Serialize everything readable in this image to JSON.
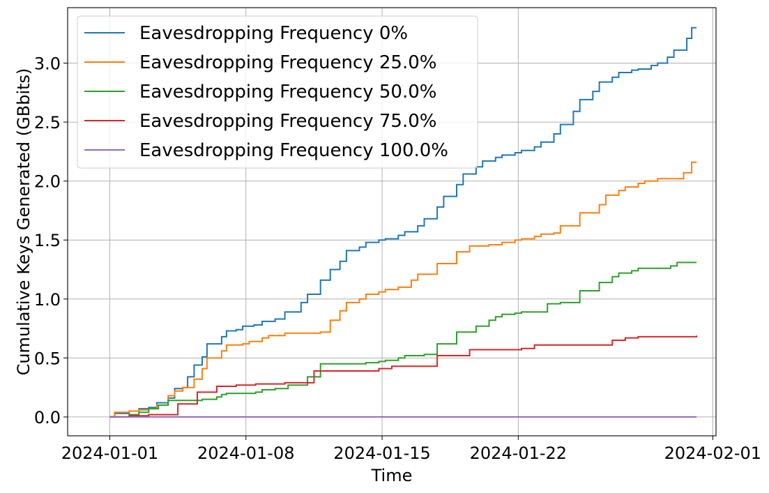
{
  "chart_data": {
    "type": "line",
    "step": true,
    "title": "",
    "xlabel": "Time",
    "ylabel": "Cumulative Keys Generated (GBbits)",
    "xlim": [
      "2023-12-29T20:00",
      "2024-02-01T04:00"
    ],
    "ylim": [
      -0.16,
      3.47
    ],
    "xticks": [
      "2024-01-01",
      "2024-01-08",
      "2024-01-15",
      "2024-01-22",
      "2024-02-01"
    ],
    "yticks": [
      "0.0",
      "0.5",
      "1.0",
      "1.5",
      "2.0",
      "2.5",
      "3.0"
    ],
    "grid": true,
    "legend_position": "top-left",
    "series": [
      {
        "name": "Eavesdropping Frequency 0%",
        "color": "#1f77b4",
        "points": [
          [
            "2024-01-01T00:00",
            0.0
          ],
          [
            "2024-01-01T06:00",
            0.03
          ],
          [
            "2024-01-02T00:00",
            0.05
          ],
          [
            "2024-01-02T12:00",
            0.07
          ],
          [
            "2024-01-03T00:00",
            0.08
          ],
          [
            "2024-01-03T10:00",
            0.12
          ],
          [
            "2024-01-04T00:00",
            0.16
          ],
          [
            "2024-01-04T08:00",
            0.24
          ],
          [
            "2024-01-04T18:00",
            0.25
          ],
          [
            "2024-01-05T00:00",
            0.34
          ],
          [
            "2024-01-05T08:00",
            0.44
          ],
          [
            "2024-01-05T18:00",
            0.51
          ],
          [
            "2024-01-06T00:00",
            0.62
          ],
          [
            "2024-01-06T18:00",
            0.68
          ],
          [
            "2024-01-07T00:00",
            0.73
          ],
          [
            "2024-01-07T12:00",
            0.74
          ],
          [
            "2024-01-07T20:00",
            0.77
          ],
          [
            "2024-01-08T10:00",
            0.78
          ],
          [
            "2024-01-08T20:00",
            0.81
          ],
          [
            "2024-01-09T12:00",
            0.83
          ],
          [
            "2024-01-10T00:00",
            0.89
          ],
          [
            "2024-01-10T20:00",
            0.97
          ],
          [
            "2024-01-11T04:00",
            1.04
          ],
          [
            "2024-01-11T20:00",
            1.16
          ],
          [
            "2024-01-12T08:00",
            1.25
          ],
          [
            "2024-01-12T20:00",
            1.32
          ],
          [
            "2024-01-13T04:00",
            1.41
          ],
          [
            "2024-01-13T20:00",
            1.44
          ],
          [
            "2024-01-14T04:00",
            1.48
          ],
          [
            "2024-01-14T20:00",
            1.5
          ],
          [
            "2024-01-15T04:00",
            1.51
          ],
          [
            "2024-01-15T20:00",
            1.54
          ],
          [
            "2024-01-16T04:00",
            1.57
          ],
          [
            "2024-01-16T20:00",
            1.62
          ],
          [
            "2024-01-17T04:00",
            1.68
          ],
          [
            "2024-01-17T20:00",
            1.78
          ],
          [
            "2024-01-18T04:00",
            1.87
          ],
          [
            "2024-01-18T20:00",
            1.97
          ],
          [
            "2024-01-19T04:00",
            2.06
          ],
          [
            "2024-01-19T20:00",
            2.12
          ],
          [
            "2024-01-20T04:00",
            2.17
          ],
          [
            "2024-01-20T20:00",
            2.2
          ],
          [
            "2024-01-21T04:00",
            2.22
          ],
          [
            "2024-01-21T20:00",
            2.24
          ],
          [
            "2024-01-22T04:00",
            2.26
          ],
          [
            "2024-01-22T20:00",
            2.29
          ],
          [
            "2024-01-23T04:00",
            2.33
          ],
          [
            "2024-01-23T20:00",
            2.4
          ],
          [
            "2024-01-24T04:00",
            2.48
          ],
          [
            "2024-01-24T20:00",
            2.59
          ],
          [
            "2024-01-25T04:00",
            2.69
          ],
          [
            "2024-01-25T20:00",
            2.76
          ],
          [
            "2024-01-26T04:00",
            2.84
          ],
          [
            "2024-01-26T20:00",
            2.88
          ],
          [
            "2024-01-27T04:00",
            2.92
          ],
          [
            "2024-01-27T20:00",
            2.94
          ],
          [
            "2024-01-28T04:00",
            2.95
          ],
          [
            "2024-01-28T20:00",
            2.98
          ],
          [
            "2024-01-29T04:00",
            3.0
          ],
          [
            "2024-01-29T16:00",
            3.05
          ],
          [
            "2024-01-30T00:00",
            3.11
          ],
          [
            "2024-01-30T16:00",
            3.21
          ],
          [
            "2024-01-30T22:00",
            3.3
          ],
          [
            "2024-01-31T04:00",
            3.3
          ]
        ]
      },
      {
        "name": "Eavesdropping Frequency 25.0%",
        "color": "#ff7f0e",
        "points": [
          [
            "2024-01-01T00:00",
            0.0
          ],
          [
            "2024-01-01T06:00",
            0.04
          ],
          [
            "2024-01-02T00:00",
            0.05
          ],
          [
            "2024-01-02T12:00",
            0.06
          ],
          [
            "2024-01-03T00:00",
            0.07
          ],
          [
            "2024-01-03T10:00",
            0.1
          ],
          [
            "2024-01-04T00:00",
            0.18
          ],
          [
            "2024-01-04T08:00",
            0.22
          ],
          [
            "2024-01-04T18:00",
            0.25
          ],
          [
            "2024-01-05T08:00",
            0.32
          ],
          [
            "2024-01-05T18:00",
            0.41
          ],
          [
            "2024-01-06T00:00",
            0.5
          ],
          [
            "2024-01-06T18:00",
            0.56
          ],
          [
            "2024-01-07T00:00",
            0.61
          ],
          [
            "2024-01-07T20:00",
            0.62
          ],
          [
            "2024-01-08T04:00",
            0.64
          ],
          [
            "2024-01-08T20:00",
            0.67
          ],
          [
            "2024-01-09T04:00",
            0.69
          ],
          [
            "2024-01-10T00:00",
            0.71
          ],
          [
            "2024-01-11T20:00",
            0.72
          ],
          [
            "2024-01-12T08:00",
            0.82
          ],
          [
            "2024-01-12T20:00",
            0.9
          ],
          [
            "2024-01-13T04:00",
            0.97
          ],
          [
            "2024-01-13T20:00",
            1.0
          ],
          [
            "2024-01-14T04:00",
            1.04
          ],
          [
            "2024-01-14T20:00",
            1.06
          ],
          [
            "2024-01-15T04:00",
            1.08
          ],
          [
            "2024-01-15T20:00",
            1.1
          ],
          [
            "2024-01-16T12:00",
            1.16
          ],
          [
            "2024-01-16T20:00",
            1.21
          ],
          [
            "2024-01-17T20:00",
            1.3
          ],
          [
            "2024-01-18T20:00",
            1.4
          ],
          [
            "2024-01-19T12:00",
            1.45
          ],
          [
            "2024-01-20T12:00",
            1.46
          ],
          [
            "2024-01-21T04:00",
            1.48
          ],
          [
            "2024-01-21T20:00",
            1.5
          ],
          [
            "2024-01-22T04:00",
            1.51
          ],
          [
            "2024-01-22T20:00",
            1.53
          ],
          [
            "2024-01-23T04:00",
            1.55
          ],
          [
            "2024-01-23T20:00",
            1.56
          ],
          [
            "2024-01-24T04:00",
            1.62
          ],
          [
            "2024-01-25T04:00",
            1.73
          ],
          [
            "2024-01-26T04:00",
            1.8
          ],
          [
            "2024-01-26T12:00",
            1.88
          ],
          [
            "2024-01-27T04:00",
            1.92
          ],
          [
            "2024-01-27T12:00",
            1.95
          ],
          [
            "2024-01-28T04:00",
            1.98
          ],
          [
            "2024-01-28T12:00",
            2.0
          ],
          [
            "2024-01-29T04:00",
            2.02
          ],
          [
            "2024-01-30T12:00",
            2.07
          ],
          [
            "2024-01-30T22:00",
            2.16
          ],
          [
            "2024-01-31T04:00",
            2.16
          ]
        ]
      },
      {
        "name": "Eavesdropping Frequency 50.0%",
        "color": "#2ca02c",
        "points": [
          [
            "2024-01-01T00:00",
            0.0
          ],
          [
            "2024-01-02T00:00",
            0.02
          ],
          [
            "2024-01-02T12:00",
            0.04
          ],
          [
            "2024-01-03T00:00",
            0.07
          ],
          [
            "2024-01-03T12:00",
            0.1
          ],
          [
            "2024-01-04T00:00",
            0.14
          ],
          [
            "2024-01-05T18:00",
            0.15
          ],
          [
            "2024-01-06T12:00",
            0.17
          ],
          [
            "2024-01-06T18:00",
            0.19
          ],
          [
            "2024-01-07T00:00",
            0.2
          ],
          [
            "2024-01-08T12:00",
            0.21
          ],
          [
            "2024-01-08T20:00",
            0.23
          ],
          [
            "2024-01-09T12:00",
            0.24
          ],
          [
            "2024-01-10T04:00",
            0.27
          ],
          [
            "2024-01-11T04:00",
            0.34
          ],
          [
            "2024-01-11T20:00",
            0.45
          ],
          [
            "2024-01-14T04:00",
            0.46
          ],
          [
            "2024-01-14T20:00",
            0.47
          ],
          [
            "2024-01-15T04:00",
            0.48
          ],
          [
            "2024-01-15T20:00",
            0.5
          ],
          [
            "2024-01-16T04:00",
            0.52
          ],
          [
            "2024-01-17T04:00",
            0.53
          ],
          [
            "2024-01-17T20:00",
            0.62
          ],
          [
            "2024-01-18T20:00",
            0.72
          ],
          [
            "2024-01-19T20:00",
            0.77
          ],
          [
            "2024-01-20T12:00",
            0.82
          ],
          [
            "2024-01-20T20:00",
            0.85
          ],
          [
            "2024-01-21T04:00",
            0.87
          ],
          [
            "2024-01-21T20:00",
            0.88
          ],
          [
            "2024-01-22T04:00",
            0.89
          ],
          [
            "2024-01-23T12:00",
            0.96
          ],
          [
            "2024-01-24T04:00",
            0.97
          ],
          [
            "2024-01-25T04:00",
            1.07
          ],
          [
            "2024-01-26T04:00",
            1.14
          ],
          [
            "2024-01-26T20:00",
            1.19
          ],
          [
            "2024-01-27T04:00",
            1.22
          ],
          [
            "2024-01-27T20:00",
            1.24
          ],
          [
            "2024-01-28T04:00",
            1.26
          ],
          [
            "2024-01-29T20:00",
            1.28
          ],
          [
            "2024-01-30T04:00",
            1.31
          ],
          [
            "2024-01-31T04:00",
            1.31
          ]
        ]
      },
      {
        "name": "Eavesdropping Frequency 75.0%",
        "color": "#d62728",
        "points": [
          [
            "2024-01-01T00:00",
            0.0
          ],
          [
            "2024-01-02T00:00",
            0.01
          ],
          [
            "2024-01-03T00:00",
            0.02
          ],
          [
            "2024-01-04T12:00",
            0.11
          ],
          [
            "2024-01-05T12:00",
            0.21
          ],
          [
            "2024-01-06T12:00",
            0.26
          ],
          [
            "2024-01-07T12:00",
            0.27
          ],
          [
            "2024-01-08T12:00",
            0.28
          ],
          [
            "2024-01-10T00:00",
            0.29
          ],
          [
            "2024-01-11T12:00",
            0.39
          ],
          [
            "2024-01-14T20:00",
            0.41
          ],
          [
            "2024-01-15T12:00",
            0.43
          ],
          [
            "2024-01-17T20:00",
            0.52
          ],
          [
            "2024-01-19T12:00",
            0.57
          ],
          [
            "2024-01-22T04:00",
            0.58
          ],
          [
            "2024-01-22T20:00",
            0.61
          ],
          [
            "2024-01-26T20:00",
            0.65
          ],
          [
            "2024-01-27T12:00",
            0.67
          ],
          [
            "2024-01-28T04:00",
            0.68
          ],
          [
            "2024-01-31T04:00",
            0.69
          ]
        ]
      },
      {
        "name": "Eavesdropping Frequency 100.0%",
        "color": "#9467bd",
        "points": [
          [
            "2024-01-01T00:00",
            0.0
          ],
          [
            "2024-01-31T04:00",
            0.0
          ]
        ]
      }
    ]
  }
}
